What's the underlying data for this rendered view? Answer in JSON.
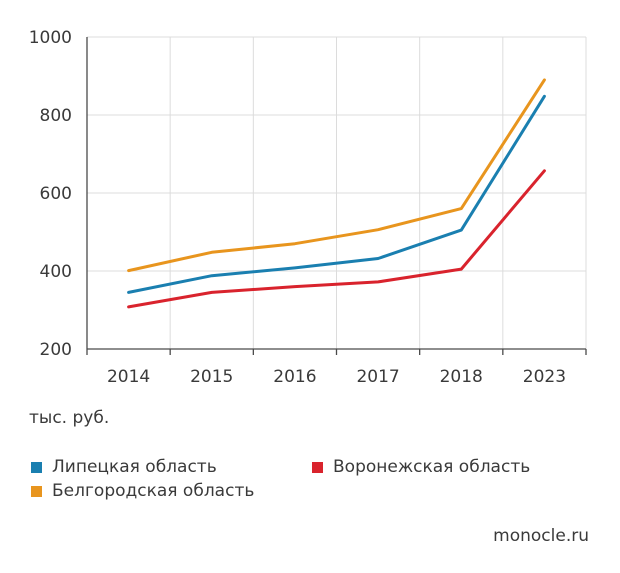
{
  "chart_data": {
    "type": "line",
    "categories": [
      "2014",
      "2015",
      "2016",
      "2017",
      "2018",
      "2023"
    ],
    "ylim": [
      200,
      1000
    ],
    "yticks": [
      200,
      400,
      600,
      800,
      1000
    ],
    "unit_label": "тыс. руб.",
    "grid": true,
    "series": [
      {
        "name": "Липецкая область",
        "color": "#1a7fb0",
        "values": [
          345,
          388,
          408,
          432,
          505,
          848
        ]
      },
      {
        "name": "Воронежская область",
        "color": "#d9232d",
        "values": [
          308,
          345,
          360,
          372,
          405,
          657
        ]
      },
      {
        "name": "Белгородская область",
        "color": "#e8951e",
        "values": [
          401,
          448,
          470,
          506,
          560,
          890
        ]
      }
    ]
  },
  "credit": "monocle.ru"
}
